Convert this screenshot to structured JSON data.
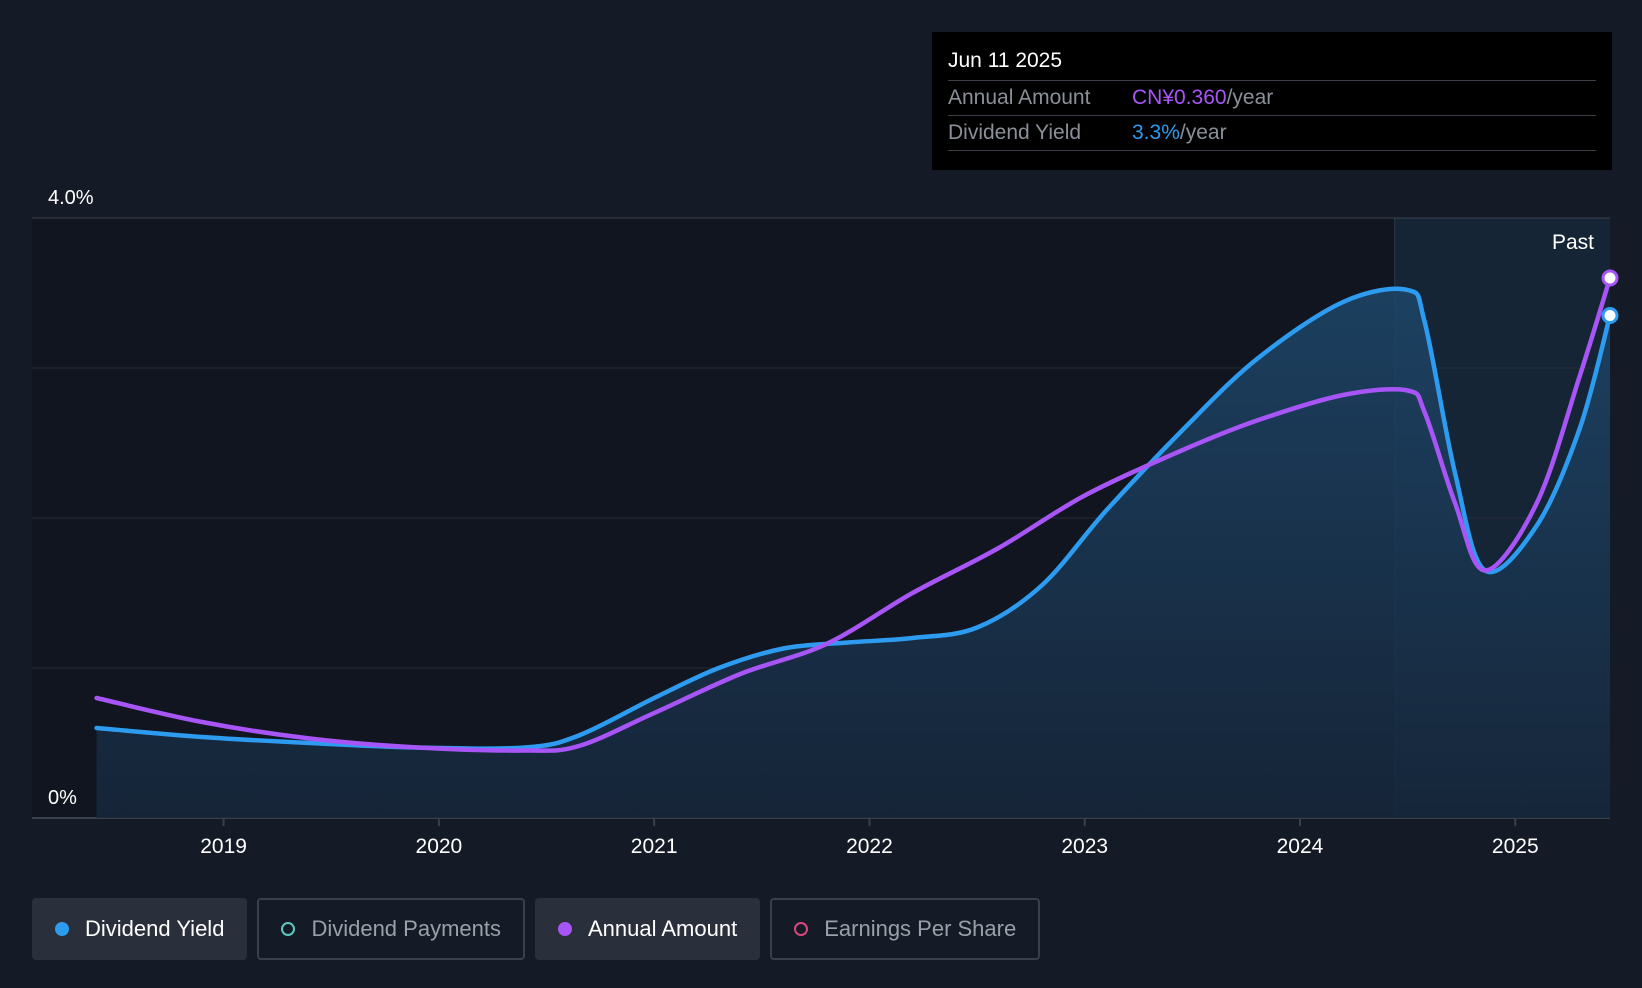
{
  "tooltip": {
    "date": "Jun 11 2025",
    "rows": [
      {
        "label": "Annual Amount",
        "value": "CN¥0.360",
        "unit": "/year",
        "color": "#a855f7"
      },
      {
        "label": "Dividend Yield",
        "value": "3.3%",
        "unit": "/year",
        "color": "#2d9cf0"
      }
    ]
  },
  "legend": [
    {
      "label": "Dividend Yield",
      "active": true,
      "color": "#2d9cf0",
      "filled": true
    },
    {
      "label": "Dividend Payments",
      "active": false,
      "color": "#5ec8c0",
      "filled": false
    },
    {
      "label": "Annual Amount",
      "active": true,
      "color": "#a855f7",
      "filled": true
    },
    {
      "label": "Earnings Per Share",
      "active": false,
      "color": "#d9467e",
      "filled": false
    }
  ],
  "chart_data": {
    "type": "line",
    "x_ticks": [
      "2019",
      "2020",
      "2021",
      "2022",
      "2023",
      "2024",
      "2025"
    ],
    "y_tick_labels": [
      "4.0%",
      "0%"
    ],
    "ylim": [
      0,
      4.0
    ],
    "xlim": [
      2018.11,
      2025.44
    ],
    "past_label": "Past",
    "past_start": 2024.44,
    "grid": true,
    "series": [
      {
        "name": "Dividend Yield",
        "color": "#2d9cf0",
        "points": [
          [
            2018.41,
            0.6
          ],
          [
            2018.9,
            0.54
          ],
          [
            2019.4,
            0.5
          ],
          [
            2019.9,
            0.47
          ],
          [
            2020.4,
            0.47
          ],
          [
            2020.65,
            0.55
          ],
          [
            2021.0,
            0.8
          ],
          [
            2021.3,
            1.0
          ],
          [
            2021.6,
            1.13
          ],
          [
            2021.9,
            1.17
          ],
          [
            2022.2,
            1.2
          ],
          [
            2022.5,
            1.27
          ],
          [
            2022.8,
            1.55
          ],
          [
            2023.1,
            2.05
          ],
          [
            2023.45,
            2.58
          ],
          [
            2023.8,
            3.06
          ],
          [
            2024.2,
            3.44
          ],
          [
            2024.5,
            3.52
          ],
          [
            2024.58,
            3.3
          ],
          [
            2024.72,
            2.3
          ],
          [
            2024.86,
            1.65
          ],
          [
            2025.1,
            1.95
          ],
          [
            2025.3,
            2.6
          ],
          [
            2025.44,
            3.35
          ]
        ]
      },
      {
        "name": "Annual Amount",
        "color": "#a855f7",
        "points": [
          [
            2018.41,
            0.8
          ],
          [
            2018.9,
            0.64
          ],
          [
            2019.4,
            0.53
          ],
          [
            2019.9,
            0.47
          ],
          [
            2020.4,
            0.45
          ],
          [
            2020.65,
            0.48
          ],
          [
            2021.0,
            0.7
          ],
          [
            2021.4,
            0.96
          ],
          [
            2021.8,
            1.16
          ],
          [
            2022.2,
            1.5
          ],
          [
            2022.6,
            1.8
          ],
          [
            2023.0,
            2.15
          ],
          [
            2023.45,
            2.45
          ],
          [
            2023.8,
            2.65
          ],
          [
            2024.2,
            2.82
          ],
          [
            2024.5,
            2.85
          ],
          [
            2024.58,
            2.7
          ],
          [
            2024.72,
            2.1
          ],
          [
            2024.86,
            1.65
          ],
          [
            2025.1,
            2.1
          ],
          [
            2025.3,
            2.95
          ],
          [
            2025.44,
            3.6
          ]
        ]
      }
    ]
  }
}
